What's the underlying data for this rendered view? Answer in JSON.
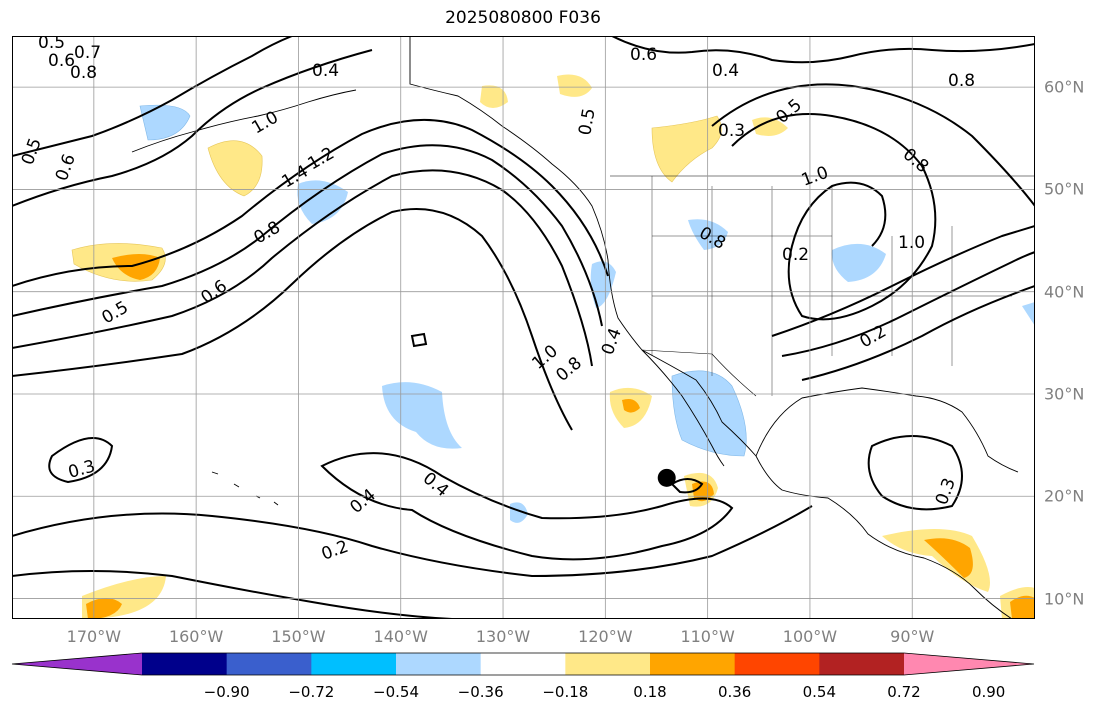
{
  "title": "2025080800 F036",
  "map": {
    "lon_range": [
      -178,
      -78
    ],
    "lat_range": [
      8,
      65
    ],
    "gridlines": true,
    "lon_labels": [
      "170°W",
      "160°W",
      "150°W",
      "140°W",
      "130°W",
      "120°W",
      "110°W",
      "100°W",
      "90°W"
    ],
    "lon_values": [
      -170,
      -160,
      -150,
      -140,
      -130,
      -120,
      -110,
      -100,
      -90
    ],
    "lat_labels": [
      "60°N",
      "50°N",
      "40°N",
      "30°N",
      "20°N",
      "10°N"
    ],
    "lat_values": [
      60,
      50,
      40,
      30,
      20,
      10
    ],
    "contour_labels": [
      "0.5",
      "0.6",
      "0.7",
      "0.8",
      "0.4",
      "1.0",
      "1.4",
      "1.2",
      "0.8",
      "0.6",
      "0.5",
      "0.5",
      "0.6",
      "0.6",
      "0.4",
      "0.5",
      "0.3",
      "0.5",
      "0.8",
      "1.0",
      "0.8",
      "1.0",
      "0.2",
      "0.8",
      "0.4",
      "1.0",
      "0.8",
      "0.3",
      "0.4",
      "0.2",
      "0.3",
      "0.2",
      "0.4"
    ],
    "storm_marker": {
      "lon": -114,
      "lat": 21.8
    }
  },
  "colorbar": {
    "colors": [
      "#9932cc",
      "#00008b",
      "#3a5fcd",
      "#00bfff",
      "#add8ff",
      "#ffffff",
      "#ffe888",
      "#ffa500",
      "#ff4500",
      "#b22222",
      "#ff88b0"
    ],
    "tick_labels": [
      "−0.90",
      "−0.72",
      "−0.54",
      "−0.36",
      "−0.18",
      "0.18",
      "0.36",
      "0.54",
      "0.72",
      "0.90"
    ],
    "extend": "both"
  }
}
